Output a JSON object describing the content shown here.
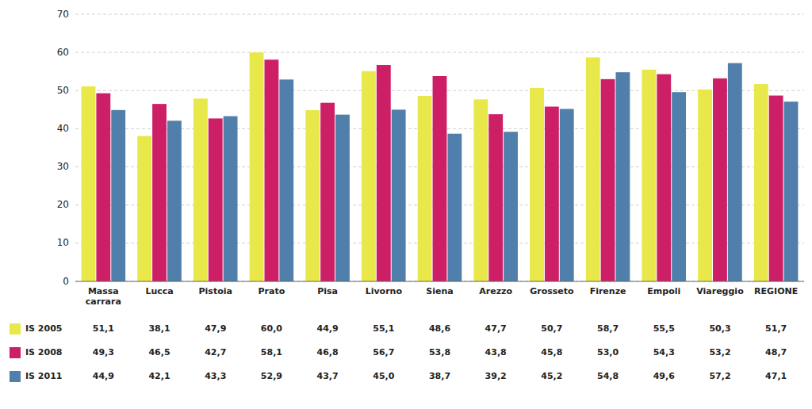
{
  "chart_data": {
    "type": "bar",
    "categories": [
      "Massa\ncarrara",
      "Lucca",
      "Pistoia",
      "Prato",
      "Pisa",
      "Livorno",
      "Siena",
      "Arezzo",
      "Grosseto",
      "Firenze",
      "Empoli",
      "Viareggio",
      "REGIONE"
    ],
    "series": [
      {
        "name": "IS 2005",
        "color": "#e8e84a",
        "values": [
          51.1,
          38.1,
          47.9,
          60.0,
          44.9,
          55.1,
          48.6,
          47.7,
          50.7,
          58.7,
          55.5,
          50.3,
          51.7
        ],
        "value_labels": [
          "51,1",
          "38,1",
          "47,9",
          "60,0",
          "44,9",
          "55,1",
          "48,6",
          "47,7",
          "50,7",
          "58,7",
          "55,5",
          "50,3",
          "51,7"
        ]
      },
      {
        "name": "IS 2008",
        "color": "#cc1f66",
        "values": [
          49.3,
          46.5,
          42.7,
          58.1,
          46.8,
          56.7,
          53.8,
          43.8,
          45.8,
          53.0,
          54.3,
          53.2,
          48.7
        ],
        "value_labels": [
          "49,3",
          "46,5",
          "42,7",
          "58,1",
          "46,8",
          "56,7",
          "53,8",
          "43,8",
          "45,8",
          "53,0",
          "54,3",
          "53,2",
          "48,7"
        ]
      },
      {
        "name": "IS 2011",
        "color": "#4f7faa",
        "values": [
          44.9,
          42.1,
          43.3,
          52.9,
          43.7,
          45.0,
          38.7,
          39.2,
          45.2,
          54.8,
          49.6,
          57.2,
          47.1
        ],
        "value_labels": [
          "44,9",
          "42,1",
          "43,3",
          "52,9",
          "43,7",
          "45,0",
          "38,7",
          "39,2",
          "45,2",
          "54,8",
          "49,6",
          "57,2",
          "47,1"
        ]
      }
    ],
    "ylim": [
      0,
      70
    ],
    "yticks": [
      0,
      10,
      20,
      30,
      40,
      50,
      60,
      70
    ],
    "grid": true,
    "legend": "bottom",
    "data_labels": true
  }
}
